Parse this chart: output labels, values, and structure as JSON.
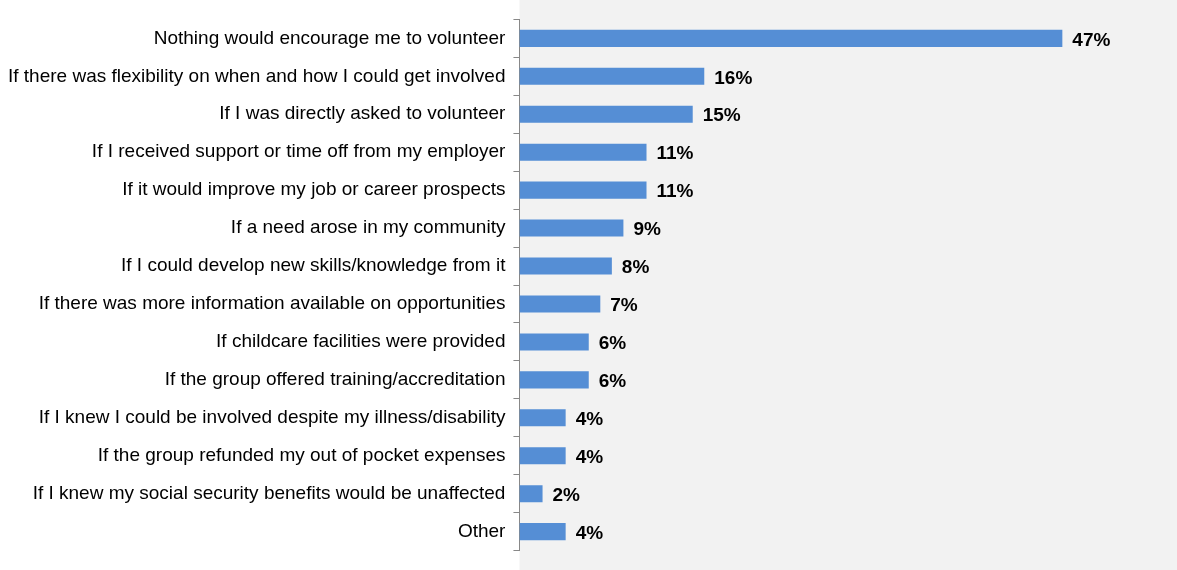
{
  "chart_data": {
    "type": "bar",
    "orientation": "horizontal",
    "categories": [
      "Nothing would encourage me to volunteer",
      "If there was flexibility on when and how I could get involved",
      "If I was directly asked to volunteer",
      "If I received support or time off from my employer",
      "If it would improve my job or career prospects",
      "If a need arose in my community",
      "If I could develop new skills/knowledge from it",
      "If there was more information available on opportunities",
      "If childcare facilities were provided",
      "If the group offered training/accreditation",
      "If I knew I could be involved despite my illness/disability",
      "If the group refunded my out of pocket expenses",
      "If I knew my social security benefits would be unaffected",
      "Other"
    ],
    "values": [
      47,
      16,
      15,
      11,
      11,
      9,
      8,
      7,
      6,
      6,
      4,
      4,
      2,
      4
    ],
    "value_labels": [
      "47%",
      "16%",
      "15%",
      "11%",
      "11%",
      "9%",
      "8%",
      "7%",
      "6%",
      "6%",
      "4%",
      "4%",
      "2%",
      "4%"
    ],
    "color": "#558ed5",
    "grid": false,
    "legend": false
  }
}
